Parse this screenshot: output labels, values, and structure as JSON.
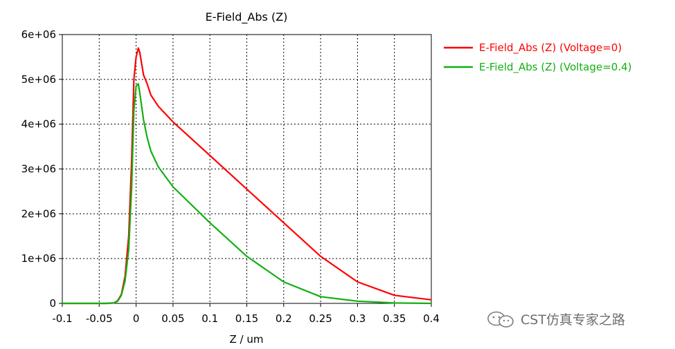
{
  "chart_data": {
    "type": "line",
    "title": "E-Field_Abs (Z)",
    "xlabel": "Z / um",
    "ylabel": "",
    "xlim": [
      -0.1,
      0.4
    ],
    "ylim": [
      0,
      6000000
    ],
    "x_ticks": [
      "-0.1",
      "-0.05",
      "0",
      "0.05",
      "0.1",
      "0.15",
      "0.2",
      "0.25",
      "0.3",
      "0.35",
      "0.4"
    ],
    "y_ticks": [
      "0",
      "1e+06",
      "2e+06",
      "3e+06",
      "4e+06",
      "5e+06",
      "6e+06"
    ],
    "grid": true,
    "legend_position": "right",
    "series": [
      {
        "name": "E-Field_Abs (Z) (Voltage=0)",
        "color": "#ff0000",
        "points": [
          [
            -0.1,
            0
          ],
          [
            -0.04,
            0
          ],
          [
            -0.03,
            10000
          ],
          [
            -0.025,
            60000
          ],
          [
            -0.02,
            200000
          ],
          [
            -0.015,
            600000
          ],
          [
            -0.01,
            1500000
          ],
          [
            -0.006,
            3200000
          ],
          [
            -0.003,
            5000000
          ],
          [
            0.0,
            5500000
          ],
          [
            0.003,
            5700000
          ],
          [
            0.005,
            5600000
          ],
          [
            0.01,
            5100000
          ],
          [
            0.015,
            4900000
          ],
          [
            0.02,
            4650000
          ],
          [
            0.03,
            4400000
          ],
          [
            0.05,
            4050000
          ],
          [
            0.1,
            3300000
          ],
          [
            0.15,
            2550000
          ],
          [
            0.2,
            1800000
          ],
          [
            0.25,
            1050000
          ],
          [
            0.3,
            480000
          ],
          [
            0.35,
            180000
          ],
          [
            0.4,
            80000
          ]
        ]
      },
      {
        "name": "E-Field_Abs (Z) (Voltage=0.4)",
        "color": "#10b010",
        "points": [
          [
            -0.1,
            0
          ],
          [
            -0.04,
            0
          ],
          [
            -0.03,
            10000
          ],
          [
            -0.025,
            50000
          ],
          [
            -0.02,
            180000
          ],
          [
            -0.015,
            500000
          ],
          [
            -0.01,
            1200000
          ],
          [
            -0.006,
            2600000
          ],
          [
            -0.003,
            4300000
          ],
          [
            0.0,
            4850000
          ],
          [
            0.003,
            4900000
          ],
          [
            0.005,
            4700000
          ],
          [
            0.01,
            4100000
          ],
          [
            0.015,
            3700000
          ],
          [
            0.02,
            3400000
          ],
          [
            0.03,
            3050000
          ],
          [
            0.05,
            2600000
          ],
          [
            0.1,
            1800000
          ],
          [
            0.15,
            1050000
          ],
          [
            0.2,
            480000
          ],
          [
            0.25,
            150000
          ],
          [
            0.3,
            50000
          ],
          [
            0.35,
            10000
          ],
          [
            0.4,
            0
          ]
        ]
      }
    ]
  },
  "watermark": {
    "text": "CST仿真专家之路",
    "icon": "wechat-icon"
  }
}
